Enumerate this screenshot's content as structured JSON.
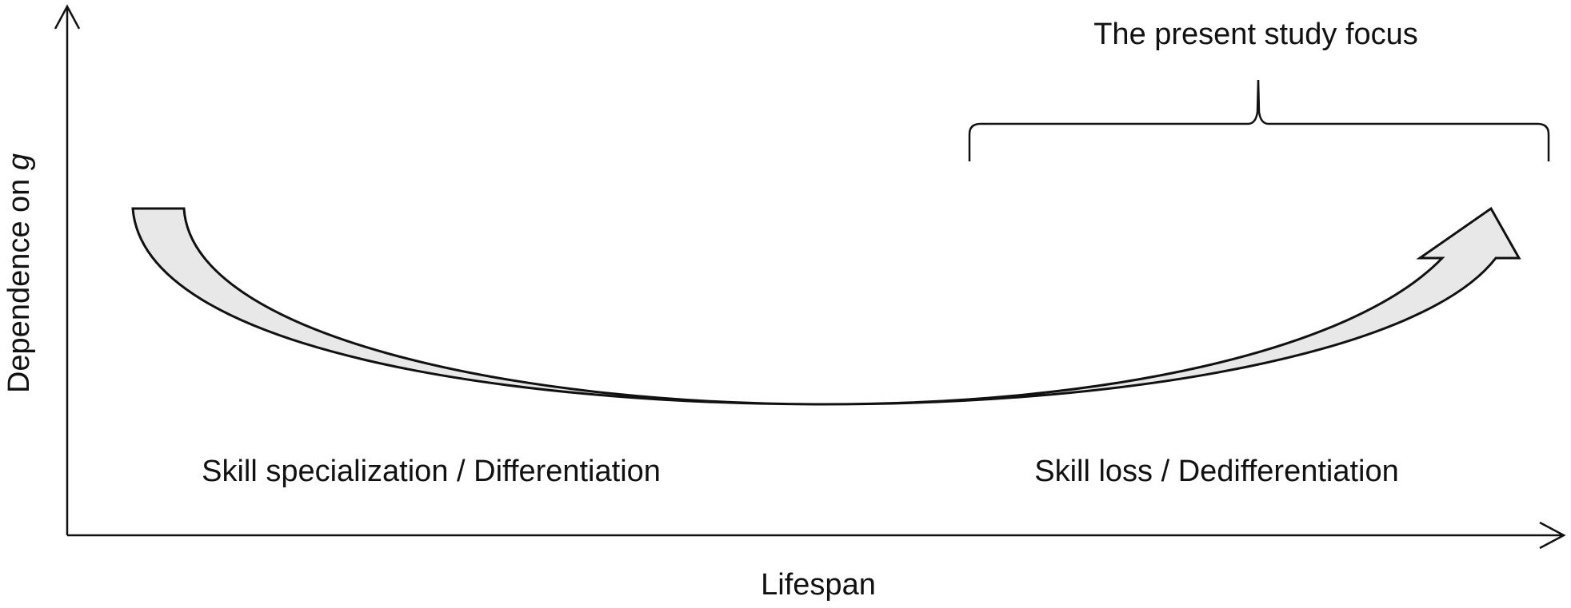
{
  "diagram": {
    "y_axis": {
      "label": "Dependence on ",
      "label_variable": "g"
    },
    "x_axis": {
      "label": "Lifespan"
    },
    "annotation": {
      "focus_label": "The present study focus"
    },
    "phases": {
      "left": "Skill specialization / Differentiation",
      "right": "Skill loss / Dedifferentiation"
    },
    "colors": {
      "stroke": "#111111",
      "arrow_fill": "#e8e8e8",
      "background": "#ffffff"
    }
  }
}
